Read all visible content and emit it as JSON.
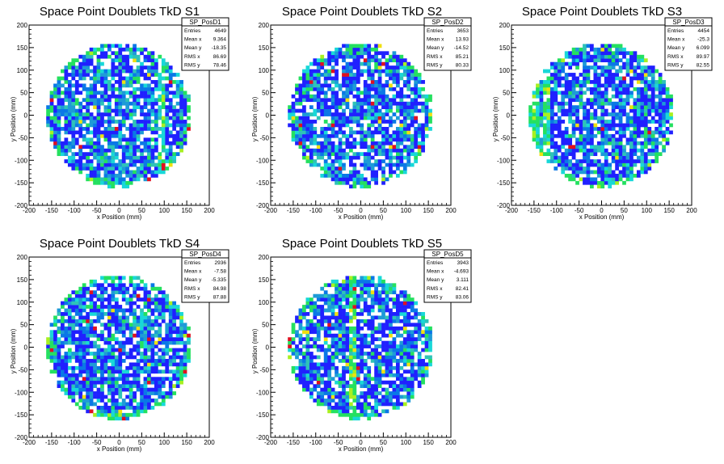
{
  "chart_data": [
    {
      "type": "heatmap",
      "title": "Space Point Doublets TkD S1",
      "xlabel": "x Position (mm)",
      "ylabel": "y Position (mm)",
      "xlim": [
        -200,
        200
      ],
      "ylim": [
        -200,
        200
      ],
      "xticks": [
        "-200",
        "-150",
        "-100",
        "-50",
        "0",
        "50",
        "100",
        "150",
        "200"
      ],
      "yticks": [
        "-200",
        "-150",
        "-100",
        "-50",
        "0",
        "50",
        "100",
        "150",
        "200"
      ],
      "disk_radius": 162,
      "bin_width": 8,
      "features": {
        "stripe_x": 95,
        "hot": 0,
        "edge_left": 0,
        "edge_right": 0,
        "seed": 11
      },
      "stats": {
        "name": "SP_PosD1",
        "rows": [
          {
            "label": "Entries",
            "value": "4649"
          },
          {
            "label": "Mean x",
            "value": "9.364"
          },
          {
            "label": "Mean y",
            "value": "-18.35"
          },
          {
            "label": "RMS x",
            "value": "86.69"
          },
          {
            "label": "RMS y",
            "value": "78.46"
          }
        ]
      }
    },
    {
      "type": "heatmap",
      "title": "Space Point Doublets TkD S2",
      "xlabel": "x Position (mm)",
      "ylabel": "y Position (mm)",
      "xlim": [
        -200,
        200
      ],
      "ylim": [
        -200,
        200
      ],
      "xticks": [
        "-200",
        "-150",
        "-100",
        "-50",
        "0",
        "50",
        "100",
        "150",
        "200"
      ],
      "yticks": [
        "-200",
        "-150",
        "-100",
        "-50",
        "0",
        "50",
        "100",
        "150",
        "200"
      ],
      "disk_radius": 162,
      "bin_width": 8,
      "features": {
        "stripe_x": null,
        "hot": 1,
        "edge_left": 0,
        "edge_right": 1,
        "seed": 23
      },
      "stats": {
        "name": "SP_PosD2",
        "rows": [
          {
            "label": "Entries",
            "value": "3653"
          },
          {
            "label": "Mean x",
            "value": "13.93"
          },
          {
            "label": "Mean y",
            "value": "-14.52"
          },
          {
            "label": "RMS x",
            "value": "85.21"
          },
          {
            "label": "RMS y",
            "value": "80.33"
          }
        ]
      }
    },
    {
      "type": "heatmap",
      "title": "Space Point Doublets TkD S3",
      "xlabel": "x Position (mm)",
      "ylabel": "y Position (mm)",
      "xlim": [
        -200,
        200
      ],
      "ylim": [
        -200,
        200
      ],
      "xticks": [
        "-200",
        "-150",
        "-100",
        "-50",
        "0",
        "50",
        "100",
        "150",
        "200"
      ],
      "yticks": [
        "-200",
        "-150",
        "-100",
        "-50",
        "0",
        "50",
        "100",
        "150",
        "200"
      ],
      "disk_radius": 162,
      "bin_width": 8,
      "features": {
        "stripe_x": -125,
        "hot": 0,
        "edge_left": 1,
        "edge_right": 0,
        "seed": 37
      },
      "stats": {
        "name": "SP_PosD3",
        "rows": [
          {
            "label": "Entries",
            "value": "4454"
          },
          {
            "label": "Mean x",
            "value": "-25.3"
          },
          {
            "label": "Mean y",
            "value": "6.099"
          },
          {
            "label": "RMS x",
            "value": "89.97"
          },
          {
            "label": "RMS y",
            "value": "82.55"
          }
        ]
      }
    },
    {
      "type": "heatmap",
      "title": "Space Point Doublets TkD S4",
      "xlabel": "x Position (mm)",
      "ylabel": "y Position (mm)",
      "xlim": [
        -200,
        200
      ],
      "ylim": [
        -200,
        200
      ],
      "xticks": [
        "-200",
        "-150",
        "-100",
        "-50",
        "0",
        "50",
        "100",
        "150",
        "200"
      ],
      "yticks": [
        "-200",
        "-150",
        "-100",
        "-50",
        "0",
        "50",
        "100",
        "150",
        "200"
      ],
      "disk_radius": 162,
      "bin_width": 8,
      "features": {
        "stripe_x": null,
        "hot": 1,
        "edge_left": 0,
        "edge_right": 1,
        "seed": 41
      },
      "stats": {
        "name": "SP_PosD4",
        "rows": [
          {
            "label": "Entries",
            "value": "2936"
          },
          {
            "label": "Mean x",
            "value": "-7.58"
          },
          {
            "label": "Mean y",
            "value": "-5.335"
          },
          {
            "label": "RMS x",
            "value": "84.98"
          },
          {
            "label": "RMS y",
            "value": "87.88"
          }
        ]
      }
    },
    {
      "type": "heatmap",
      "title": "Space Point Doublets TkD S5",
      "xlabel": "x Position (mm)",
      "ylabel": "y Position (mm)",
      "xlim": [
        -200,
        200
      ],
      "ylim": [
        -200,
        200
      ],
      "xticks": [
        "-200",
        "-150",
        "-100",
        "-50",
        "0",
        "50",
        "100",
        "150",
        "200"
      ],
      "yticks": [
        "-200",
        "-150",
        "-100",
        "-50",
        "0",
        "50",
        "100",
        "150",
        "200"
      ],
      "disk_radius": 162,
      "bin_width": 8,
      "features": {
        "stripe_x": -20,
        "hot": 1,
        "edge_left": 0,
        "edge_right": 0,
        "seed": 53
      },
      "stats": {
        "name": "SP_PosD5",
        "rows": [
          {
            "label": "Entries",
            "value": "3943"
          },
          {
            "label": "Mean x",
            "value": "-4.693"
          },
          {
            "label": "Mean y",
            "value": "3.111"
          },
          {
            "label": "RMS x",
            "value": "82.41"
          },
          {
            "label": "RMS y",
            "value": "83.06"
          }
        ]
      }
    }
  ],
  "palette": {
    "blue": "#2020ff",
    "dodger": "#0a78e6",
    "azure": "#1e9bd7",
    "teal": "#2ec3b8",
    "cyan": "#18d8d8",
    "green": "#24e060",
    "lime": "#a8f020",
    "yellow": "#f0e010",
    "red": "#e01020"
  }
}
